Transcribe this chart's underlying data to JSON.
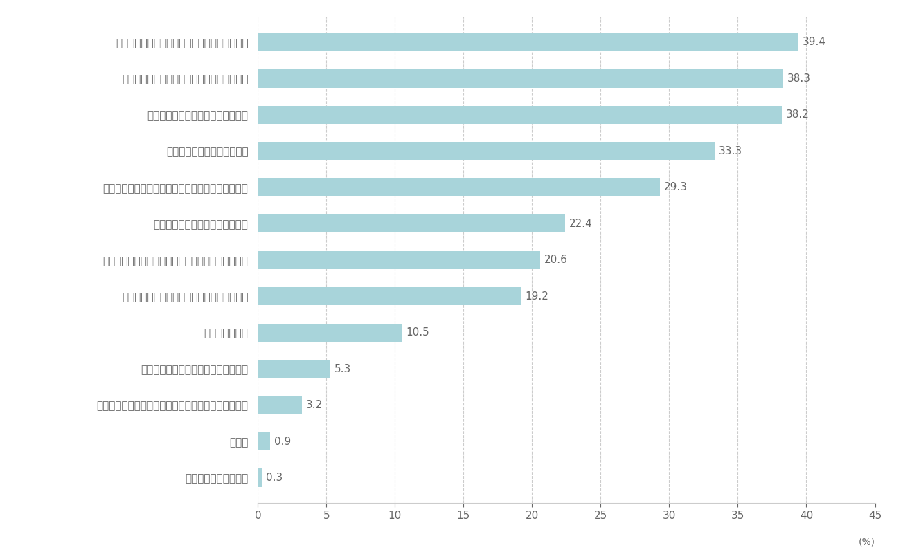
{
  "categories": [
    "特に大きな理由はない",
    "その他",
    "周囲の意見やすすめ（家族・先生・先輩・友人など）",
    "会社の知名度が高い・業界大手である",
    "給与水準が高い",
    "会社のビジョンや理念・価値観に共感できる",
    "希望する働き方ができる（場所、時間、副業など）",
    "プライベートの時間を確保できる",
    "自分が成長できる・どこでも通用する力が身につく",
    "自分のやりたい仕事ができる",
    "仕事内容が魅力的・やりがいがある",
    "自分らしく働ける・強みや持ち味を生かせる",
    "働いている人が魅力的・職場の人間関係がよい"
  ],
  "values": [
    0.3,
    0.9,
    3.2,
    5.3,
    10.5,
    19.2,
    20.6,
    22.4,
    29.3,
    33.3,
    38.2,
    38.3,
    39.4
  ],
  "bar_color": "#a8d4da",
  "bar_edge_color": "none",
  "background_color": "#ffffff",
  "grid_color": "#cccccc",
  "text_color": "#666666",
  "value_label_color": "#666666",
  "xlim": [
    0,
    45
  ],
  "xticks": [
    0,
    5,
    10,
    15,
    20,
    25,
    30,
    35,
    40,
    45
  ],
  "xlabel": "(%)",
  "bar_height": 0.5,
  "figsize": [
    13.3,
    8.08
  ],
  "dpi": 100,
  "ylabel_fontsize": 11,
  "value_fontsize": 11,
  "xtick_fontsize": 11,
  "xlabel_fontsize": 10
}
